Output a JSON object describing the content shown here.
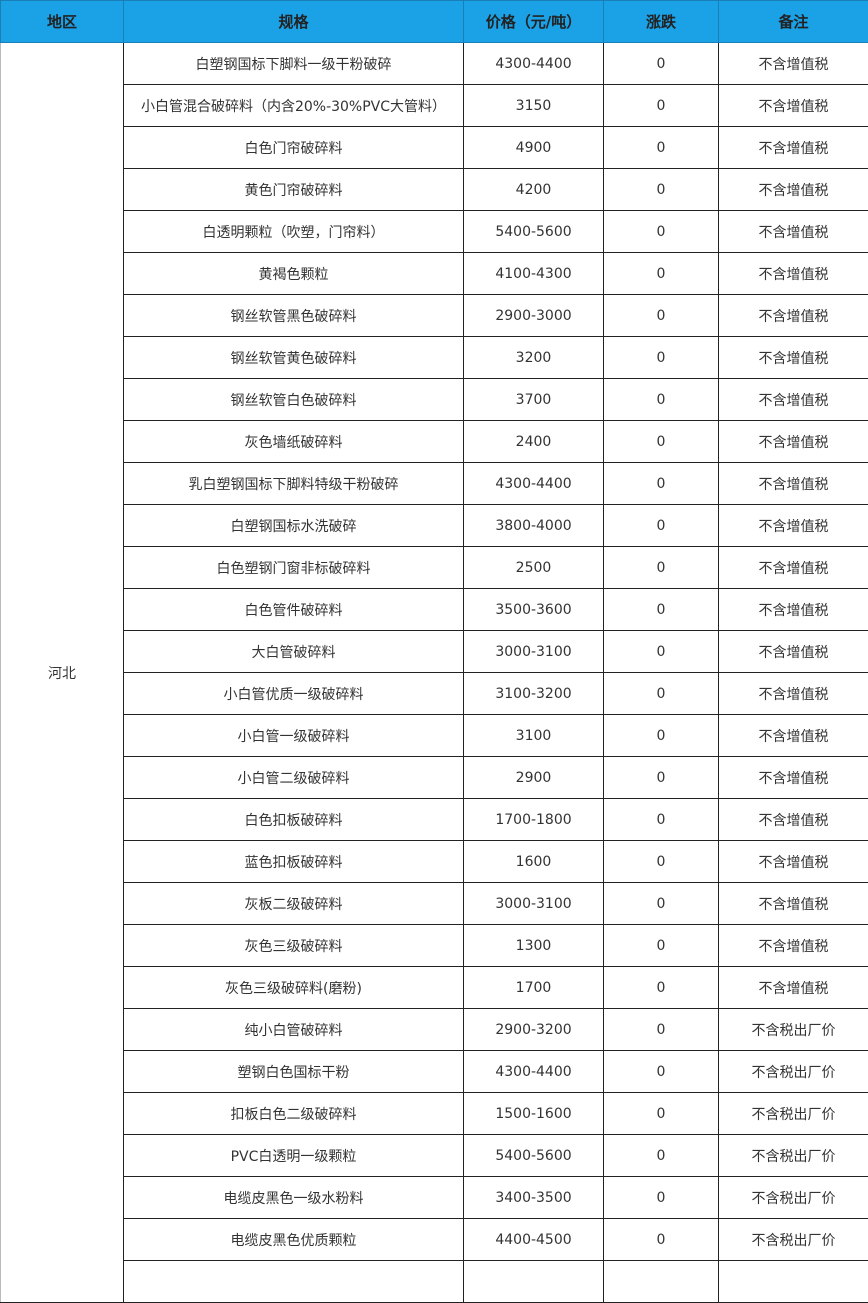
{
  "header": {
    "region": "地区",
    "spec": "规格",
    "price": "价格（元/吨）",
    "change": "涨跌",
    "note": "备注"
  },
  "colors": {
    "header_bg": "#1ba1e6"
  },
  "region": "河北",
  "rows": [
    {
      "spec": "白塑钢国标下脚料一级干粉破碎",
      "price": "4300-4400",
      "change": "0",
      "note": "不含增值税"
    },
    {
      "spec": "小白管混合破碎料（内含20%-30%PVC大管料）",
      "price": "3150",
      "change": "0",
      "note": "不含增值税"
    },
    {
      "spec": "白色门帘破碎料",
      "price": "4900",
      "change": "0",
      "note": "不含增值税"
    },
    {
      "spec": "黄色门帘破碎料",
      "price": "4200",
      "change": "0",
      "note": "不含增值税"
    },
    {
      "spec": "白透明颗粒（吹塑，门帘料）",
      "price": "5400-5600",
      "change": "0",
      "note": "不含增值税"
    },
    {
      "spec": "黄褐色颗粒",
      "price": "4100-4300",
      "change": "0",
      "note": "不含增值税"
    },
    {
      "spec": "钢丝软管黑色破碎料",
      "price": "2900-3000",
      "change": "0",
      "note": "不含增值税"
    },
    {
      "spec": "钢丝软管黄色破碎料",
      "price": "3200",
      "change": "0",
      "note": "不含增值税"
    },
    {
      "spec": "钢丝软管白色破碎料",
      "price": "3700",
      "change": "0",
      "note": "不含增值税"
    },
    {
      "spec": "灰色墙纸破碎料",
      "price": "2400",
      "change": "0",
      "note": "不含增值税"
    },
    {
      "spec": "乳白塑钢国标下脚料特级干粉破碎",
      "price": "4300-4400",
      "change": "0",
      "note": "不含增值税"
    },
    {
      "spec": "白塑钢国标水洗破碎",
      "price": "3800-4000",
      "change": "0",
      "note": "不含增值税"
    },
    {
      "spec": "白色塑钢门窗非标破碎料",
      "price": "2500",
      "change": "0",
      "note": "不含增值税"
    },
    {
      "spec": "白色管件破碎料",
      "price": "3500-3600",
      "change": "0",
      "note": "不含增值税"
    },
    {
      "spec": "大白管破碎料",
      "price": "3000-3100",
      "change": "0",
      "note": "不含增值税"
    },
    {
      "spec": "小白管优质一级破碎料",
      "price": "3100-3200",
      "change": "0",
      "note": "不含增值税"
    },
    {
      "spec": "小白管一级破碎料",
      "price": "3100",
      "change": "0",
      "note": "不含增值税"
    },
    {
      "spec": "小白管二级破碎料",
      "price": "2900",
      "change": "0",
      "note": "不含增值税"
    },
    {
      "spec": "白色扣板破碎料",
      "price": "1700-1800",
      "change": "0",
      "note": "不含增值税"
    },
    {
      "spec": "蓝色扣板破碎料",
      "price": "1600",
      "change": "0",
      "note": "不含增值税"
    },
    {
      "spec": "灰板二级破碎料",
      "price": "3000-3100",
      "change": "0",
      "note": "不含增值税"
    },
    {
      "spec": "灰色三级破碎料",
      "price": "1300",
      "change": "0",
      "note": "不含增值税"
    },
    {
      "spec": "灰色三级破碎料(磨粉)",
      "price": "1700",
      "change": "0",
      "note": "不含增值税"
    },
    {
      "spec": "纯小白管破碎料",
      "price": "2900-3200",
      "change": "0",
      "note": "不含税出厂价"
    },
    {
      "spec": "塑钢白色国标干粉",
      "price": "4300-4400",
      "change": "0",
      "note": "不含税出厂价"
    },
    {
      "spec": "扣板白色二级破碎料",
      "price": "1500-1600",
      "change": "0",
      "note": "不含税出厂价"
    },
    {
      "spec": "PVC白透明一级颗粒",
      "price": "5400-5600",
      "change": "0",
      "note": "不含税出厂价"
    },
    {
      "spec": "电缆皮黑色一级水粉料",
      "price": "3400-3500",
      "change": "0",
      "note": "不含税出厂价"
    },
    {
      "spec": "电缆皮黑色优质颗粒",
      "price": "4400-4500",
      "change": "0",
      "note": "不含税出厂价"
    }
  ]
}
